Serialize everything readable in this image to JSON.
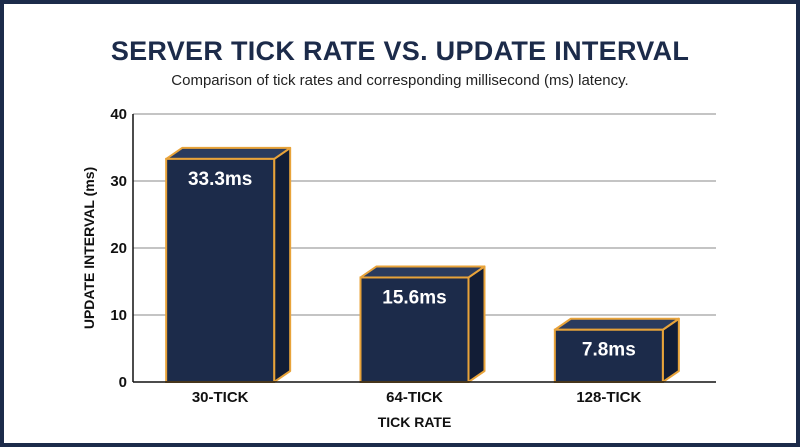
{
  "chart_data": {
    "type": "bar",
    "title": "SERVER TICK RATE VS. UPDATE INTERVAL",
    "subtitle": "Comparison of tick rates and corresponding millisecond (ms) latency.",
    "xlabel": "TICK RATE",
    "ylabel": "UPDATE INTERVAL (ms)",
    "categories": [
      "30-TICK",
      "64-TICK",
      "128-TICK"
    ],
    "values": [
      33.3,
      15.6,
      7.8
    ],
    "data_labels": [
      "33.3ms",
      "15.6ms",
      "7.8ms"
    ],
    "ylim": [
      0,
      40
    ],
    "yticks": [
      0,
      10,
      20,
      30,
      40
    ],
    "grid": true,
    "colors": {
      "bar_front": "#1c2b4a",
      "bar_outline": "#e8a33a",
      "background_frame": "#1c2b4a",
      "gridline": "#8a8a8a"
    }
  }
}
